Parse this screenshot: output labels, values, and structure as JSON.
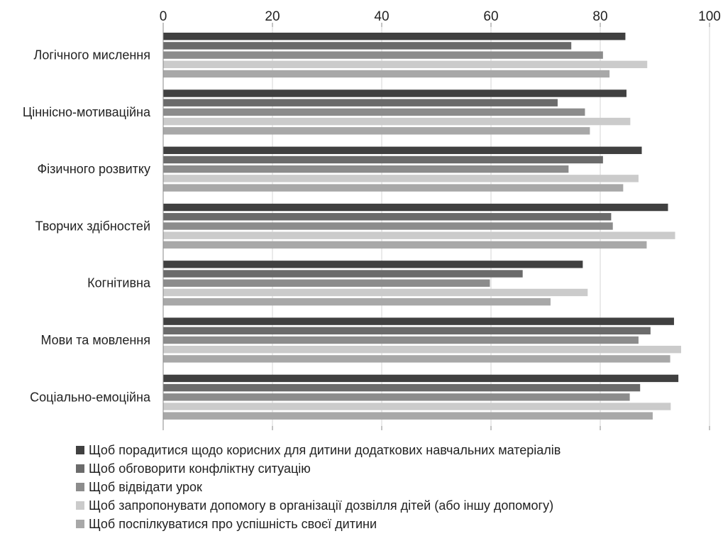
{
  "chart_data": {
    "type": "bar",
    "orientation": "horizontal",
    "title": "",
    "xlabel": "",
    "ylabel": "",
    "xlim": [
      0,
      100
    ],
    "x_ticks": [
      0,
      20,
      40,
      60,
      80,
      100
    ],
    "grid": true,
    "legend_position": "bottom",
    "categories": [
      "Логічного мислення",
      "Ціннісно-мотиваційна",
      "Фізичного розвитку",
      "Творчих здібностей",
      "Когнітивна",
      "Мови та мовлення",
      "Соціально-емоційна"
    ],
    "series": [
      {
        "name": "Щоб порадитися щодо корисних для дитини додаткових навчальних матеріалів",
        "color": "#404040",
        "values": [
          84.6,
          84.8,
          87.6,
          92.4,
          76.8,
          93.5,
          94.3
        ]
      },
      {
        "name": "Щоб обговорити конфліктну ситуацію",
        "color": "#6b6b6b",
        "values": [
          74.7,
          72.2,
          80.5,
          82.0,
          65.8,
          89.2,
          87.3
        ]
      },
      {
        "name": "Щоб відвідати урок",
        "color": "#8c8c8c",
        "values": [
          80.5,
          77.2,
          74.2,
          82.3,
          59.8,
          87.0,
          85.4
        ]
      },
      {
        "name": "Щоб запропонувати допомогу в організації дозвілля дітей (або іншу допомогу)",
        "color": "#cbcbcb",
        "values": [
          88.6,
          85.5,
          87.0,
          93.7,
          77.7,
          94.8,
          92.9
        ]
      },
      {
        "name": "Щоб поспілкуватися про успішність своєї дитини",
        "color": "#a8a8a8",
        "values": [
          81.7,
          78.1,
          84.2,
          88.5,
          70.9,
          92.8,
          89.6
        ]
      }
    ]
  }
}
